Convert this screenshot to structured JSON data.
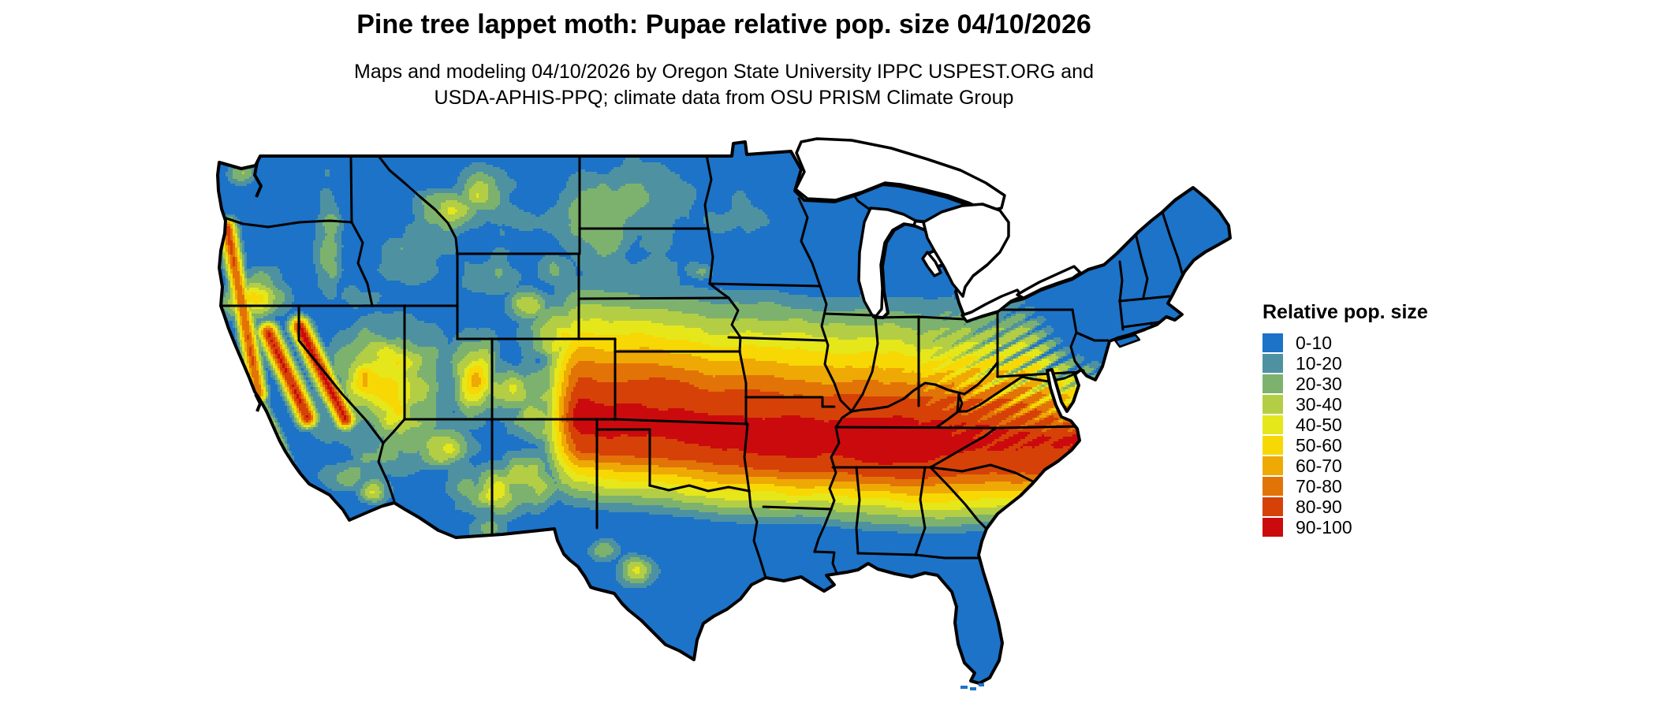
{
  "header": {
    "title": "Pine tree lappet moth: Pupae relative pop. size 04/10/2026",
    "subtitle_line1": "Maps and modeling 04/10/2026 by Oregon State University IPPC USPEST.ORG and",
    "subtitle_line2": "USDA-APHIS-PPQ; climate data from OSU PRISM Climate Group"
  },
  "legend": {
    "title": "Relative pop. size",
    "items": [
      {
        "label": "0-10",
        "color": "#1C73C8"
      },
      {
        "label": "10-20",
        "color": "#4E92A2"
      },
      {
        "label": "20-30",
        "color": "#7DB26E"
      },
      {
        "label": "30-40",
        "color": "#B3CE45"
      },
      {
        "label": "40-50",
        "color": "#E5E71B"
      },
      {
        "label": "50-60",
        "color": "#F7D804"
      },
      {
        "label": "60-70",
        "color": "#EEA904"
      },
      {
        "label": "70-80",
        "color": "#E27307"
      },
      {
        "label": "80-90",
        "color": "#D64108"
      },
      {
        "label": "90-100",
        "color": "#CB0A0E"
      }
    ]
  },
  "map": {
    "name": "contiguous-us-relative-population-raster-map",
    "border_color": "#000000",
    "water_color": "#ffffff"
  }
}
